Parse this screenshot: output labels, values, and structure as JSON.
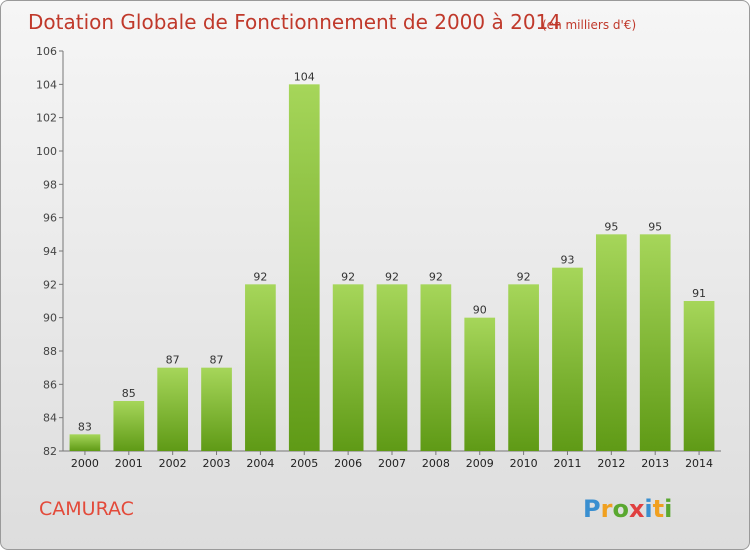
{
  "chart_data": {
    "type": "bar",
    "title": "Dotation Globale de Fonctionnement de 2000 à 2014",
    "subtitle": "(en milliers d'€)",
    "categories": [
      "2000",
      "2001",
      "2002",
      "2003",
      "2004",
      "2005",
      "2006",
      "2007",
      "2008",
      "2009",
      "2010",
      "2011",
      "2012",
      "2013",
      "2014"
    ],
    "values": [
      83,
      85,
      87,
      87,
      92,
      104,
      92,
      92,
      92,
      90,
      92,
      93,
      95,
      95,
      91
    ],
    "ylim": [
      82,
      106
    ],
    "yticks": [
      82,
      84,
      86,
      88,
      90,
      92,
      94,
      96,
      98,
      100,
      102,
      104,
      106
    ],
    "grid": false,
    "bar_color_top": "#a6d65a",
    "bar_color_bottom": "#5f9a16"
  },
  "commune": "CAMURAC",
  "logo": {
    "text": "Proxiti",
    "letters": [
      {
        "ch": "P",
        "color": "#3a8fd0"
      },
      {
        "ch": "r",
        "color": "#f0a020"
      },
      {
        "ch": "o",
        "color": "#5aa830"
      },
      {
        "ch": "x",
        "color": "#e04040"
      },
      {
        "ch": "i",
        "color": "#3a8fd0"
      },
      {
        "ch": "t",
        "color": "#f0a020"
      },
      {
        "ch": "i",
        "color": "#5aa830"
      }
    ]
  }
}
